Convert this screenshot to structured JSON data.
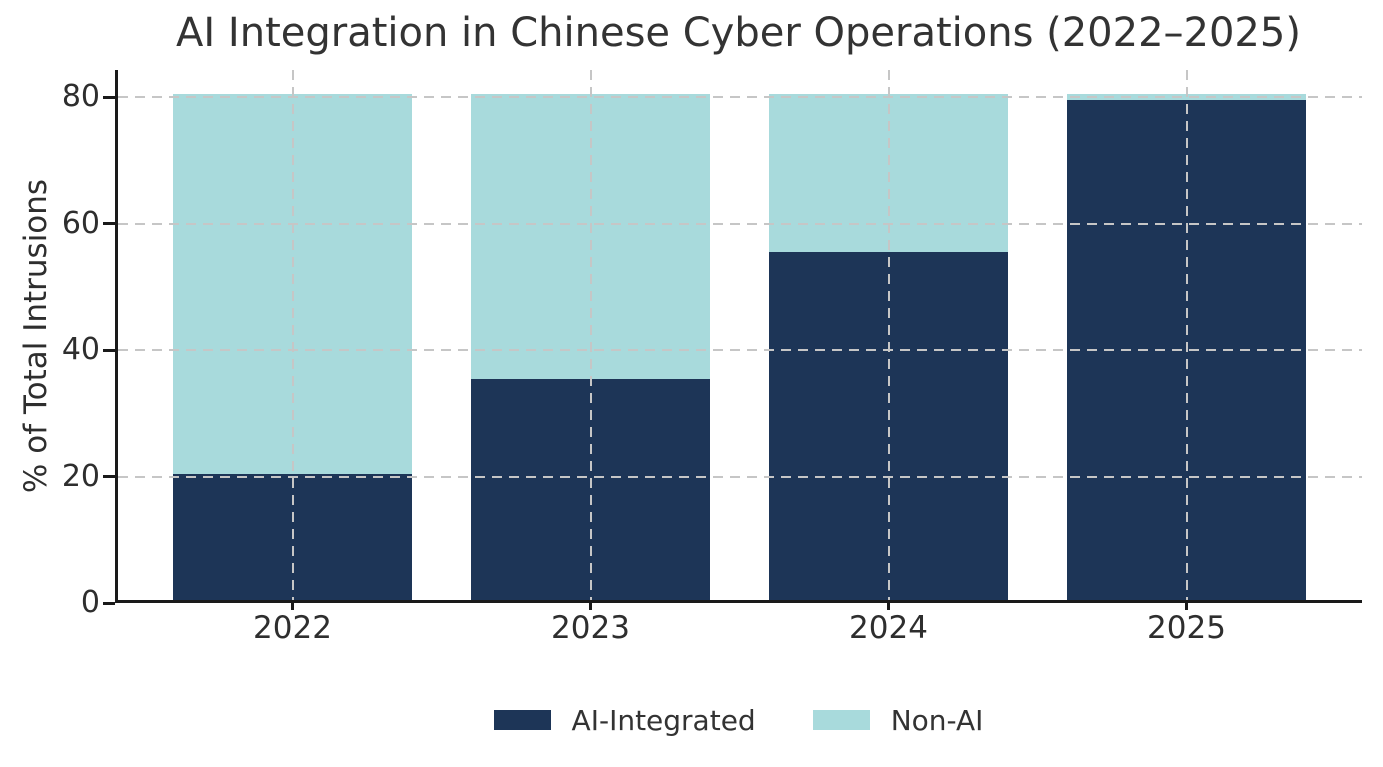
{
  "chart_data": {
    "type": "bar",
    "stacked": true,
    "title": "AI Integration in Chinese Cyber Operations (2022–2025)",
    "xlabel": "",
    "ylabel": "% of Total Intrusions",
    "categories": [
      "2022",
      "2023",
      "2024",
      "2025"
    ],
    "series": [
      {
        "name": "AI-Integrated",
        "color": "#1d3557",
        "values": [
          20,
          35,
          55,
          79
        ]
      },
      {
        "name": "Non-AI",
        "color": "#a8dadc",
        "values": [
          60,
          45,
          25,
          1
        ]
      }
    ],
    "ylim": [
      0,
      80
    ],
    "yticks": [
      0,
      20,
      40,
      60,
      80
    ],
    "grid": true,
    "grid_style": "dashed",
    "grid_over_bars": true,
    "legend_position": "bottom-center"
  },
  "colors": {
    "background": "#ffffff",
    "text": "#333333",
    "tick_text": "#2e2e2e",
    "grid": "#c6c6c6",
    "axis": "#1a1a1a",
    "ai_integrated": "#1d3557",
    "non_ai": "#a8dadc"
  }
}
